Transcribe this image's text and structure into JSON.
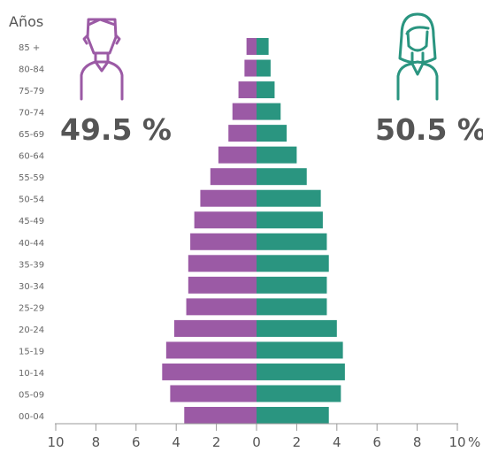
{
  "chart_data": {
    "type": "bar",
    "orientation": "horizontal-population-pyramid",
    "ylabel": "Años",
    "xlabel_unit": "%",
    "xlim": [
      -10,
      10
    ],
    "x_ticks": [
      "10",
      "8",
      "6",
      "4",
      "2",
      "0",
      "2",
      "4",
      "6",
      "8",
      "10"
    ],
    "categories": [
      "00-04",
      "05-09",
      "10-14",
      "15-19",
      "20-24",
      "25-29",
      "30-34",
      "35-39",
      "40-44",
      "45-49",
      "50-54",
      "55-59",
      "60-64",
      "65-69",
      "70-74",
      "75-79",
      "80-84",
      "85 +"
    ],
    "series": [
      {
        "name": "Hombres",
        "percent_total": "49.5 %",
        "color": "#9b5aa5",
        "values": [
          3.6,
          4.3,
          4.7,
          4.5,
          4.1,
          3.5,
          3.4,
          3.4,
          3.3,
          3.1,
          2.8,
          2.3,
          1.9,
          1.4,
          1.2,
          0.9,
          0.6,
          0.5
        ]
      },
      {
        "name": "Mujeres",
        "percent_total": "50.5 %",
        "color": "#2a9580",
        "values": [
          3.6,
          4.2,
          4.4,
          4.3,
          4.0,
          3.5,
          3.5,
          3.6,
          3.5,
          3.3,
          3.2,
          2.5,
          2.0,
          1.5,
          1.2,
          0.9,
          0.7,
          0.6
        ]
      }
    ]
  },
  "icons": {
    "male": "man-icon",
    "female": "woman-icon"
  }
}
